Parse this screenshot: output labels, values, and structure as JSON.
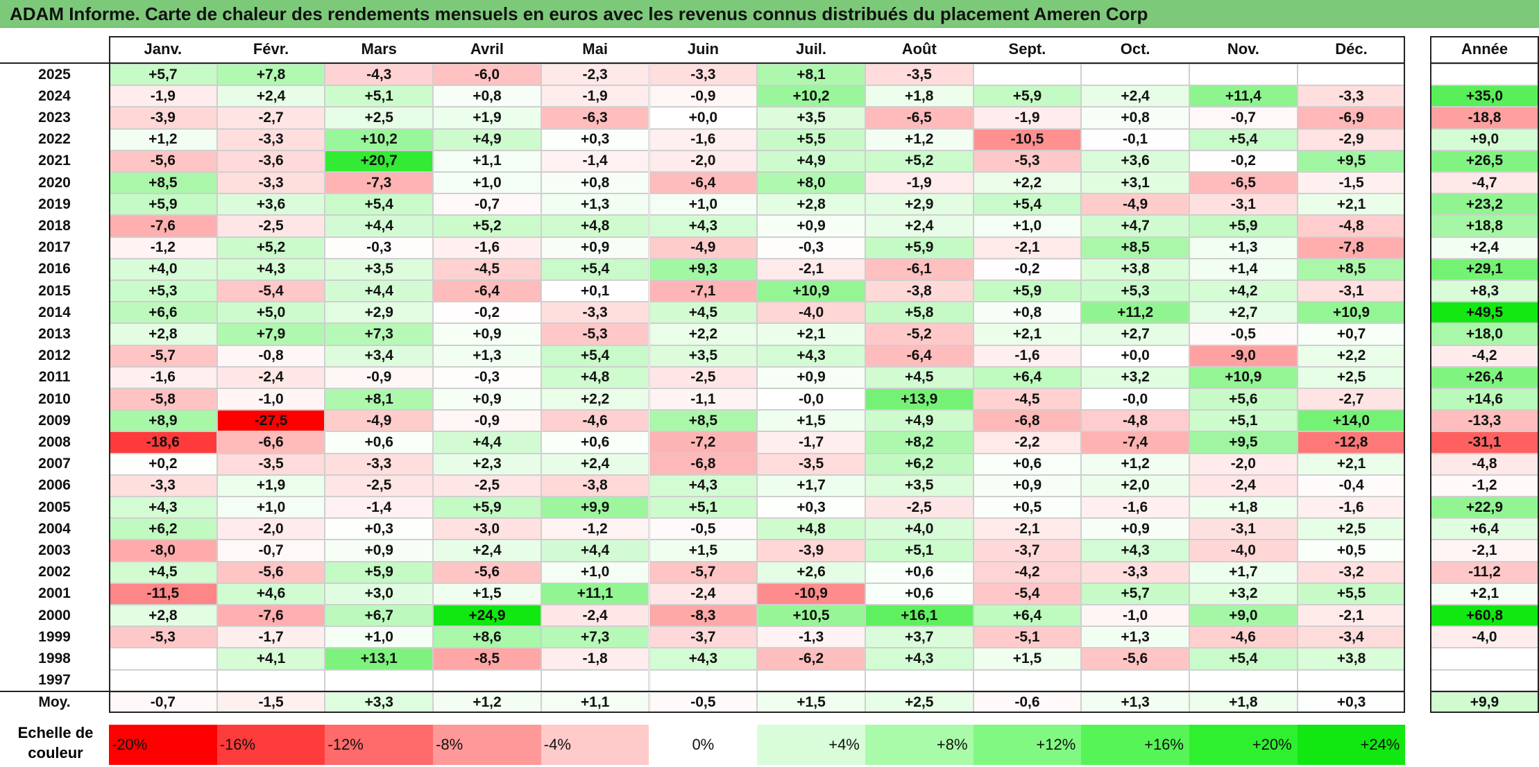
{
  "title": "ADAM Informe. Carte de chaleur des rendements mensuels en euros avec les revenus connus distribués du placement Ameren Corp",
  "months": [
    "Janv.",
    "Févr.",
    "Mars",
    "Avril",
    "Mai",
    "Juin",
    "Juil.",
    "Août",
    "Sept.",
    "Oct.",
    "Nov.",
    "Déc."
  ],
  "annual_header": "Année",
  "average_label": "Moy.",
  "legend_label": "Echelle de couleur",
  "chart_data": {
    "type": "heatmap",
    "title": "ADAM Informe. Carte de chaleur des rendements mensuels en euros avec les revenus connus distribués du placement Ameren Corp",
    "columns": [
      "Janv.",
      "Févr.",
      "Mars",
      "Avril",
      "Mai",
      "Juin",
      "Juil.",
      "Août",
      "Sept.",
      "Oct.",
      "Nov.",
      "Déc."
    ],
    "rows": [
      {
        "year": "2025",
        "months": [
          "+5,7",
          "+7,8",
          "-4,3",
          "-6,0",
          "-2,3",
          "-3,3",
          "+8,1",
          "-3,5",
          "",
          "",
          "",
          ""
        ],
        "annual": ""
      },
      {
        "year": "2024",
        "months": [
          "-1,9",
          "+2,4",
          "+5,1",
          "+0,8",
          "-1,9",
          "-0,9",
          "+10,2",
          "+1,8",
          "+5,9",
          "+2,4",
          "+11,4",
          "-3,3"
        ],
        "annual": "+35,0"
      },
      {
        "year": "2023",
        "months": [
          "-3,9",
          "-2,7",
          "+2,5",
          "+1,9",
          "-6,3",
          "+0,0",
          "+3,5",
          "-6,5",
          "-1,9",
          "+0,8",
          "-0,7",
          "-6,9"
        ],
        "annual": "-18,8"
      },
      {
        "year": "2022",
        "months": [
          "+1,2",
          "-3,3",
          "+10,2",
          "+4,9",
          "+0,3",
          "-1,6",
          "+5,5",
          "+1,2",
          "-10,5",
          "-0,1",
          "+5,4",
          "-2,9"
        ],
        "annual": "+9,0"
      },
      {
        "year": "2021",
        "months": [
          "-5,6",
          "-3,6",
          "+20,7",
          "+1,1",
          "-1,4",
          "-2,0",
          "+4,9",
          "+5,2",
          "-5,3",
          "+3,6",
          "-0,2",
          "+9,5"
        ],
        "annual": "+26,5"
      },
      {
        "year": "2020",
        "months": [
          "+8,5",
          "-3,3",
          "-7,3",
          "+1,0",
          "+0,8",
          "-6,4",
          "+8,0",
          "-1,9",
          "+2,2",
          "+3,1",
          "-6,5",
          "-1,5"
        ],
        "annual": "-4,7"
      },
      {
        "year": "2019",
        "months": [
          "+5,9",
          "+3,6",
          "+5,4",
          "-0,7",
          "+1,3",
          "+1,0",
          "+2,8",
          "+2,9",
          "+5,4",
          "-4,9",
          "-3,1",
          "+2,1"
        ],
        "annual": "+23,2"
      },
      {
        "year": "2018",
        "months": [
          "-7,6",
          "-2,5",
          "+4,4",
          "+5,2",
          "+4,8",
          "+4,3",
          "+0,9",
          "+2,4",
          "+1,0",
          "+4,7",
          "+5,9",
          "-4,8"
        ],
        "annual": "+18,8"
      },
      {
        "year": "2017",
        "months": [
          "-1,2",
          "+5,2",
          "-0,3",
          "-1,6",
          "+0,9",
          "-4,9",
          "-0,3",
          "+5,9",
          "-2,1",
          "+8,5",
          "+1,3",
          "-7,8"
        ],
        "annual": "+2,4"
      },
      {
        "year": "2016",
        "months": [
          "+4,0",
          "+4,3",
          "+3,5",
          "-4,5",
          "+5,4",
          "+9,3",
          "-2,1",
          "-6,1",
          "-0,2",
          "+3,8",
          "+1,4",
          "+8,5"
        ],
        "annual": "+29,1"
      },
      {
        "year": "2015",
        "months": [
          "+5,3",
          "-5,4",
          "+4,4",
          "-6,4",
          "+0,1",
          "-7,1",
          "+10,9",
          "-3,8",
          "+5,9",
          "+5,3",
          "+4,2",
          "-3,1"
        ],
        "annual": "+8,3"
      },
      {
        "year": "2014",
        "months": [
          "+6,6",
          "+5,0",
          "+2,9",
          "-0,2",
          "-3,3",
          "+4,5",
          "-4,0",
          "+5,8",
          "+0,8",
          "+11,2",
          "+2,7",
          "+10,9"
        ],
        "annual": "+49,5"
      },
      {
        "year": "2013",
        "months": [
          "+2,8",
          "+7,9",
          "+7,3",
          "+0,9",
          "-5,3",
          "+2,2",
          "+2,1",
          "-5,2",
          "+2,1",
          "+2,7",
          "-0,5",
          "+0,7"
        ],
        "annual": "+18,0"
      },
      {
        "year": "2012",
        "months": [
          "-5,7",
          "-0,8",
          "+3,4",
          "+1,3",
          "+5,4",
          "+3,5",
          "+4,3",
          "-6,4",
          "-1,6",
          "+0,0",
          "-9,0",
          "+2,2"
        ],
        "annual": "-4,2"
      },
      {
        "year": "2011",
        "months": [
          "-1,6",
          "-2,4",
          "-0,9",
          "-0,3",
          "+4,8",
          "-2,5",
          "+0,9",
          "+4,5",
          "+6,4",
          "+3,2",
          "+10,9",
          "+2,5"
        ],
        "annual": "+26,4"
      },
      {
        "year": "2010",
        "months": [
          "-5,8",
          "-1,0",
          "+8,1",
          "+0,9",
          "+2,2",
          "-1,1",
          "-0,0",
          "+13,9",
          "-4,5",
          "-0,0",
          "+5,6",
          "-2,7"
        ],
        "annual": "+14,6"
      },
      {
        "year": "2009",
        "months": [
          "+8,9",
          "-27,5",
          "-4,9",
          "-0,9",
          "-4,6",
          "+8,5",
          "+1,5",
          "+4,9",
          "-6,8",
          "-4,8",
          "+5,1",
          "+14,0"
        ],
        "annual": "-13,3"
      },
      {
        "year": "2008",
        "months": [
          "-18,6",
          "-6,6",
          "+0,6",
          "+4,4",
          "+0,6",
          "-7,2",
          "-1,7",
          "+8,2",
          "-2,2",
          "-7,4",
          "+9,5",
          "-12,8"
        ],
        "annual": "-31,1"
      },
      {
        "year": "2007",
        "months": [
          "+0,2",
          "-3,5",
          "-3,3",
          "+2,3",
          "+2,4",
          "-6,8",
          "-3,5",
          "+6,2",
          "+0,6",
          "+1,2",
          "-2,0",
          "+2,1"
        ],
        "annual": "-4,8"
      },
      {
        "year": "2006",
        "months": [
          "-3,3",
          "+1,9",
          "-2,5",
          "-2,5",
          "-3,8",
          "+4,3",
          "+1,7",
          "+3,5",
          "+0,9",
          "+2,0",
          "-2,4",
          "-0,4"
        ],
        "annual": "-1,2"
      },
      {
        "year": "2005",
        "months": [
          "+4,3",
          "+1,0",
          "-1,4",
          "+5,9",
          "+9,9",
          "+5,1",
          "+0,3",
          "-2,5",
          "+0,5",
          "-1,6",
          "+1,8",
          "-1,6"
        ],
        "annual": "+22,9"
      },
      {
        "year": "2004",
        "months": [
          "+6,2",
          "-2,0",
          "+0,3",
          "-3,0",
          "-1,2",
          "-0,5",
          "+4,8",
          "+4,0",
          "-2,1",
          "+0,9",
          "-3,1",
          "+2,5"
        ],
        "annual": "+6,4"
      },
      {
        "year": "2003",
        "months": [
          "-8,0",
          "-0,7",
          "+0,9",
          "+2,4",
          "+4,4",
          "+1,5",
          "-3,9",
          "+5,1",
          "-3,7",
          "+4,3",
          "-4,0",
          "+0,5"
        ],
        "annual": "-2,1"
      },
      {
        "year": "2002",
        "months": [
          "+4,5",
          "-5,6",
          "+5,9",
          "-5,6",
          "+1,0",
          "-5,7",
          "+2,6",
          "+0,6",
          "-4,2",
          "-3,3",
          "+1,7",
          "-3,2"
        ],
        "annual": "-11,2"
      },
      {
        "year": "2001",
        "months": [
          "-11,5",
          "+4,6",
          "+3,0",
          "+1,5",
          "+11,1",
          "-2,4",
          "-10,9",
          "+0,6",
          "-5,4",
          "+5,7",
          "+3,2",
          "+5,5"
        ],
        "annual": "+2,1"
      },
      {
        "year": "2000",
        "months": [
          "+2,8",
          "-7,6",
          "+6,7",
          "+24,9",
          "-2,4",
          "-8,3",
          "+10,5",
          "+16,1",
          "+6,4",
          "-1,0",
          "+9,0",
          "-2,1"
        ],
        "annual": "+60,8"
      },
      {
        "year": "1999",
        "months": [
          "-5,3",
          "-1,7",
          "+1,0",
          "+8,6",
          "+7,3",
          "-3,7",
          "-1,3",
          "+3,7",
          "-5,1",
          "+1,3",
          "-4,6",
          "-3,4"
        ],
        "annual": "-4,0"
      },
      {
        "year": "1998",
        "months": [
          "",
          "+4,1",
          "+13,1",
          "-8,5",
          "-1,8",
          "+4,3",
          "-6,2",
          "+4,3",
          "+1,5",
          "-5,6",
          "+5,4",
          "+3,8"
        ],
        "annual": ""
      },
      {
        "year": "1997",
        "months": [
          "",
          "",
          "",
          "",
          "",
          "",
          "",
          "",
          "",
          "",
          "",
          ""
        ],
        "annual": ""
      }
    ],
    "average": {
      "months": [
        "-0,7",
        "-1,5",
        "+3,3",
        "+1,2",
        "+1,1",
        "-0,5",
        "+1,5",
        "+2,5",
        "-0,6",
        "+1,3",
        "+1,8",
        "+0,3"
      ],
      "annual": "+9,9"
    },
    "color_scale": {
      "labels": [
        "-20%",
        "-16%",
        "-12%",
        "-8%",
        "-4%",
        "0%",
        "+4%",
        "+8%",
        "+12%",
        "+16%",
        "+20%",
        "+24%"
      ],
      "values": [
        -20,
        -16,
        -12,
        -8,
        -4,
        0,
        4,
        8,
        12,
        16,
        20,
        24
      ],
      "colors": [
        "#ff0000",
        "#ff3c3c",
        "#ff6a6a",
        "#ff9898",
        "#ffcaca",
        "#ffffff",
        "#d8fdd8",
        "#a9fba9",
        "#81f881",
        "#57f457",
        "#2ff02f",
        "#11e811"
      ]
    }
  }
}
